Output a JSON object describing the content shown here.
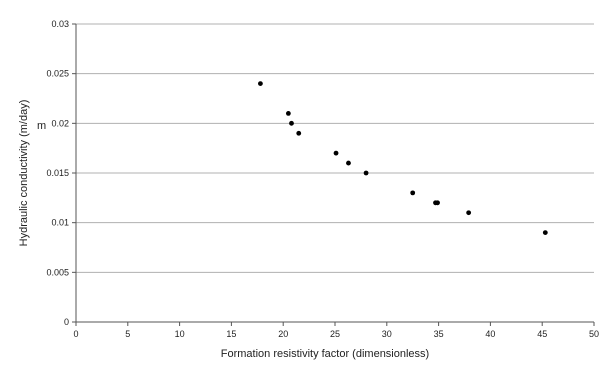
{
  "chart_data": {
    "type": "scatter",
    "title": "",
    "xlabel": "Formation resistivity factor (dimensionless)",
    "ylabel": "Hydraulic conductivity (m/day)",
    "xlim": [
      0,
      50
    ],
    "ylim": [
      0,
      0.03
    ],
    "xticks": [
      "0",
      "5",
      "10",
      "15",
      "20",
      "25",
      "30",
      "35",
      "40",
      "45",
      "50"
    ],
    "yticks": [
      "0",
      "0.005",
      "0.01",
      "0.015",
      "0.02",
      "0.025",
      "0.03"
    ],
    "grid": "horizontal",
    "legend": "none",
    "marker_color": "#000000",
    "gridline_color": "#b0b0b0",
    "stray_label": "m",
    "points": [
      {
        "x": 17.8,
        "y": 0.024
      },
      {
        "x": 20.5,
        "y": 0.021
      },
      {
        "x": 20.8,
        "y": 0.02
      },
      {
        "x": 21.5,
        "y": 0.019
      },
      {
        "x": 25.1,
        "y": 0.017
      },
      {
        "x": 26.3,
        "y": 0.016
      },
      {
        "x": 28.0,
        "y": 0.015
      },
      {
        "x": 32.5,
        "y": 0.013
      },
      {
        "x": 34.7,
        "y": 0.012
      },
      {
        "x": 34.9,
        "y": 0.012
      },
      {
        "x": 37.9,
        "y": 0.011
      },
      {
        "x": 45.3,
        "y": 0.009
      }
    ]
  }
}
